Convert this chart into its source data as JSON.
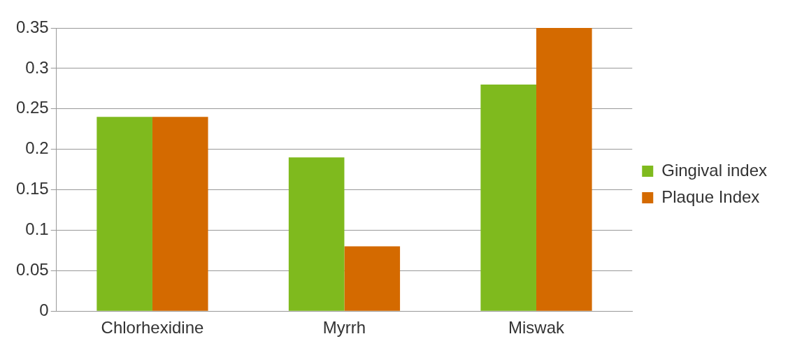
{
  "chart_data": {
    "type": "bar",
    "categories": [
      "Chlorhexidine",
      "Myrrh",
      "Miswak"
    ],
    "series": [
      {
        "name": "Gingival index",
        "color": "#7fba1e",
        "values": [
          0.24,
          0.19,
          0.28
        ]
      },
      {
        "name": "Plaque Index",
        "color": "#d46a00",
        "values": [
          0.24,
          0.08,
          0.35
        ]
      }
    ],
    "ylim": [
      0,
      0.35
    ],
    "yticks": [
      0,
      0.05,
      0.1,
      0.15,
      0.2,
      0.25,
      0.3,
      0.35
    ],
    "grid": "y",
    "legend": "right"
  }
}
